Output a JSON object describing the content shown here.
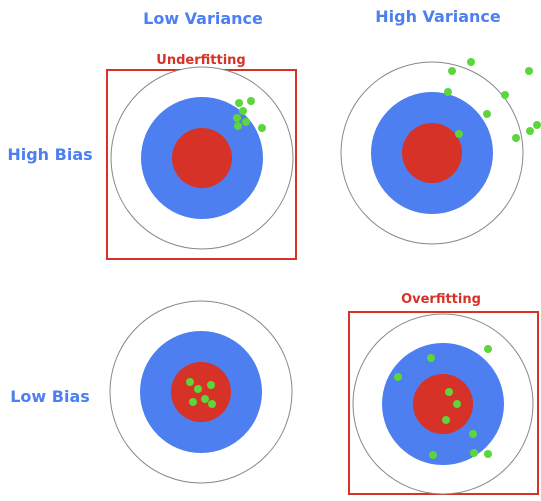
{
  "header": {
    "low_variance": "Low Variance",
    "high_variance": "High Variance"
  },
  "rows": {
    "high_bias": "High Bias",
    "low_bias": "Low Bias"
  },
  "labels": {
    "underfitting": "Underfitting",
    "overfitting": "Overfitting"
  },
  "colors": {
    "header_text": "#4d7ff0",
    "label_text": "#d63227",
    "outer_ring": "#888888",
    "blue_ring": "#4d7ff0",
    "red_center": "#d63227",
    "box_border": "#d63227",
    "shot": "#5cd63a"
  }
}
